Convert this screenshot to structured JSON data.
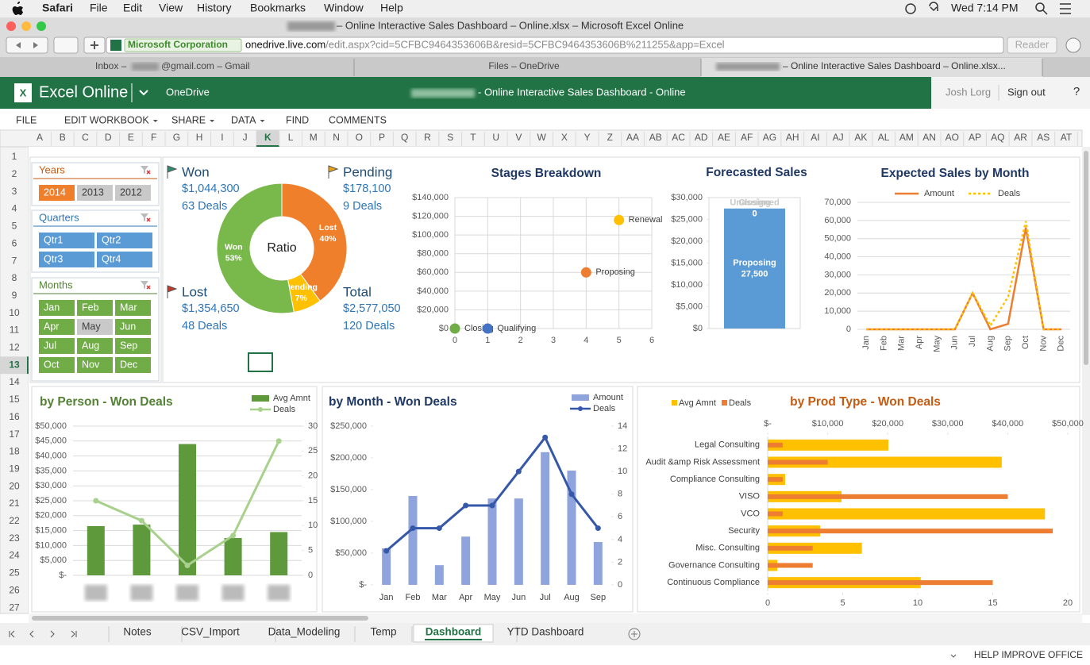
{
  "menubar": {
    "app": "Safari",
    "items": [
      "File",
      "Edit",
      "View",
      "History",
      "Bookmarks",
      "Window",
      "Help"
    ],
    "clock": "Wed 7:14 PM"
  },
  "browser": {
    "window_title": "– Online Interactive Sales Dashboard – Online.xlsx – Microsoft Excel Online",
    "site_identity": "Microsoft Corporation",
    "url_host": "onedrive.live.com",
    "url_path": "/edit.aspx?cid=5CFBC9464353606B&resid=5CFBC9464353606B%211255&app=Excel",
    "reader": "Reader",
    "tabs": [
      [
        "Inbox –",
        "@gmail.com – Gmail"
      ],
      [
        "Files – OneDrive"
      ],
      [
        "– Online Interactive Sales Dashboard – Online.xlsx..."
      ]
    ]
  },
  "excel": {
    "app": "Excel Online",
    "location": "OneDrive",
    "doc_title": "- Online Interactive Sales Dashboard - Online",
    "user": "Josh Lorg",
    "sign_out": "Sign out",
    "help": "?",
    "ribbon": [
      "FILE",
      "EDIT WORKBOOK",
      "SHARE",
      "DATA",
      "FIND",
      "COMMENTS"
    ]
  },
  "sheet": {
    "columns": [
      "A",
      "B",
      "C",
      "D",
      "E",
      "F",
      "G",
      "H",
      "I",
      "J",
      "K",
      "L",
      "M",
      "N",
      "O",
      "P",
      "Q",
      "R",
      "S",
      "T",
      "U",
      "V",
      "W",
      "X",
      "Y",
      "Z",
      "AA",
      "AB",
      "AC",
      "AD",
      "AE",
      "AF",
      "AG",
      "AH",
      "AI",
      "AJ",
      "AK",
      "AL",
      "AM",
      "AN",
      "AO",
      "AP",
      "AQ",
      "AR",
      "AS",
      "AT"
    ],
    "rows": [
      1,
      2,
      3,
      4,
      5,
      6,
      7,
      8,
      9,
      10,
      11,
      12,
      13,
      14,
      15,
      16,
      17,
      18,
      19,
      20,
      21,
      22,
      23,
      24,
      25,
      26,
      27
    ],
    "active_column": "K",
    "active_row": 13,
    "tabs": [
      "Notes",
      "CSV_Import",
      "Data_Modeling",
      "Temp",
      "Dashboard",
      "YTD Dashboard"
    ],
    "active_tab": "Dashboard",
    "status": "HELP IMPROVE OFFICE"
  },
  "slicers": [
    {
      "title": "Years",
      "color": "#c55a11",
      "button_color": "#f07f2b",
      "items": [
        {
          "label": "2014",
          "selected": true
        },
        {
          "label": "2013",
          "selected": false
        },
        {
          "label": "2012",
          "selected": false
        }
      ]
    },
    {
      "title": "Quarters",
      "color": "#2e75b6",
      "button_color": "#5b9bd5",
      "items": [
        {
          "label": "Qtr1",
          "selected": true
        },
        {
          "label": "Qtr2",
          "selected": true
        },
        {
          "label": "Qtr3",
          "selected": true
        },
        {
          "label": "Qtr4",
          "selected": true
        }
      ]
    },
    {
      "title": "Months",
      "color": "#548235",
      "button_color": "#70ad47",
      "items": [
        {
          "label": "Jan",
          "selected": true
        },
        {
          "label": "Feb",
          "selected": true
        },
        {
          "label": "Mar",
          "selected": true
        },
        {
          "label": "Apr",
          "selected": true
        },
        {
          "label": "May",
          "selected": false
        },
        {
          "label": "Jun",
          "selected": true
        },
        {
          "label": "Jul",
          "selected": true
        },
        {
          "label": "Aug",
          "selected": true
        },
        {
          "label": "Sep",
          "selected": true
        },
        {
          "label": "Oct",
          "selected": true
        },
        {
          "label": "Nov",
          "selected": true
        },
        {
          "label": "Dec",
          "selected": true
        }
      ]
    }
  ],
  "kpis": [
    {
      "label": "Won",
      "amount": "$1,044,300",
      "deals": "63 Deals",
      "flag": "#2e8b6e"
    },
    {
      "label": "Pending",
      "amount": "$178,100",
      "deals": "9 Deals",
      "flag": "#e8a317"
    },
    {
      "label": "Lost",
      "amount": "$1,354,650",
      "deals": "48 Deals",
      "flag": "#c0392b"
    },
    {
      "label": "Total",
      "amount": "$2,577,050",
      "deals": "120 Deals"
    }
  ],
  "chart_data": [
    {
      "type": "pie",
      "center_label": "Ratio",
      "categories": [
        "Lost",
        "Pending",
        "Won"
      ],
      "values": [
        40,
        7,
        53
      ],
      "value_labels": [
        "40%",
        "7%",
        "53%"
      ],
      "colors": [
        "#f07f2b",
        "#ffc000",
        "#79b94b"
      ]
    },
    {
      "type": "scatter",
      "title": "Stages Breakdown",
      "title_color": "#1f3864",
      "grid": true,
      "xlim": [
        0,
        6
      ],
      "xticks": [
        0,
        1,
        2,
        3,
        4,
        5,
        6
      ],
      "ylim": [
        0,
        140000
      ],
      "yticks": [
        {
          "value": 0,
          "label": "$0"
        },
        {
          "value": 20000,
          "label": "$20,000"
        },
        {
          "value": 40000,
          "label": "$40,000"
        },
        {
          "value": 60000,
          "label": "$60,000"
        },
        {
          "value": 80000,
          "label": "$80,000"
        },
        {
          "value": 100000,
          "label": "$100,000"
        },
        {
          "value": 120000,
          "label": "$120,000"
        },
        {
          "value": 140000,
          "label": "$140,000"
        }
      ],
      "series": [
        {
          "name": "Closing",
          "color": "#70ad47",
          "x": [
            0
          ],
          "values": [
            0
          ]
        },
        {
          "name": "Qualifying",
          "color": "#4472c4",
          "x": [
            1
          ],
          "values": [
            0
          ]
        },
        {
          "name": "Proposing",
          "color": "#ed7d31",
          "x": [
            4
          ],
          "values": [
            60000
          ]
        },
        {
          "name": "Renewal",
          "color": "#ffc000",
          "x": [
            5
          ],
          "values": [
            116000
          ]
        }
      ]
    },
    {
      "type": "stacked_bar",
      "title": "Forecasted Sales",
      "title_color": "#1f3864",
      "grid": false,
      "ylim": [
        0,
        30000
      ],
      "yticks": [
        {
          "value": 0,
          "label": "$0"
        },
        {
          "value": 5000,
          "label": "$5,000"
        },
        {
          "value": 10000,
          "label": "$10,000"
        },
        {
          "value": 15000,
          "label": "$15,000"
        },
        {
          "value": 20000,
          "label": "$20,000"
        },
        {
          "value": 25000,
          "label": "$25,000"
        },
        {
          "value": 30000,
          "label": "$30,000"
        }
      ],
      "series": [
        {
          "name": "Proposing",
          "color": "#5b9bd5",
          "values": [
            27500
          ],
          "value_labels": [
            "27,500"
          ]
        },
        {
          "name": "Closing",
          "color": "#a5a5a5",
          "values": [
            0
          ],
          "value_labels": [
            "0"
          ]
        },
        {
          "name": "Unassigned",
          "color": "#ffc000",
          "values": [
            0
          ],
          "value_labels": [
            "0"
          ]
        }
      ]
    },
    {
      "type": "line",
      "title": "Expected Sales by Month",
      "title_color": "#1f3864",
      "grid": true,
      "categories": [
        "Jan",
        "Feb",
        "Mar",
        "Apr",
        "May",
        "Jun",
        "Jul",
        "Aug",
        "Sep",
        "Oct",
        "Nov",
        "Dec"
      ],
      "ylim": [
        0,
        70000
      ],
      "yticks": [
        0,
        {
          "value": 10000,
          "label": "10,000"
        },
        {
          "value": 20000,
          "label": "20,000"
        },
        {
          "value": 30000,
          "label": "30,000"
        },
        {
          "value": 40000,
          "label": "40,000"
        },
        {
          "value": 50000,
          "label": "50,000"
        },
        {
          "value": 60000,
          "label": "60,000"
        },
        {
          "value": 70000,
          "label": "70,000"
        }
      ],
      "series": [
        {
          "name": "Amount",
          "color": "#ed7d31",
          "dash": false,
          "values": [
            0,
            0,
            0,
            0,
            0,
            0,
            20000,
            0,
            3000,
            56000,
            0,
            0
          ]
        },
        {
          "name": "Deals",
          "color": "#ffc000",
          "dash": true,
          "values": [
            0,
            0,
            0,
            0,
            0,
            0,
            20000,
            2000,
            18000,
            59500,
            0,
            0
          ]
        }
      ]
    },
    {
      "type": "bar_line",
      "title": "by Person - Won Deals",
      "title_color": "#548235",
      "grid": true,
      "categories": [
        null,
        null,
        null,
        null,
        null
      ],
      "ylim": [
        0,
        50000
      ],
      "yticks": [
        {
          "value": 0,
          "label": "$-"
        },
        {
          "value": 5000,
          "label": "$5,000"
        },
        {
          "value": 10000,
          "label": "$10,000"
        },
        {
          "value": 15000,
          "label": "$15,000"
        },
        {
          "value": 20000,
          "label": "$20,000"
        },
        {
          "value": 25000,
          "label": "$25,000"
        },
        {
          "value": 30000,
          "label": "$30,000"
        },
        {
          "value": 35000,
          "label": "$35,000"
        },
        {
          "value": 40000,
          "label": "$40,000"
        },
        {
          "value": 45000,
          "label": "$45,000"
        },
        {
          "value": 50000,
          "label": "$50,000"
        }
      ],
      "y2lim": [
        0,
        30
      ],
      "y2ticks": [
        0,
        5,
        10,
        15,
        20,
        25,
        30
      ],
      "series": [
        {
          "name": "Avg Amnt",
          "color": "#5e9a3b",
          "values": [
            16500,
            17000,
            44000,
            12500,
            14500
          ]
        },
        {
          "name": "Deals",
          "color": "#a9d18e",
          "axis": "y2",
          "values": [
            15,
            11,
            2,
            8,
            27
          ]
        }
      ]
    },
    {
      "type": "bar_line",
      "title": "by Month - Won Deals",
      "title_color": "#1f3864",
      "grid": false,
      "categories": [
        "Jan",
        "Feb",
        "Mar",
        "Apr",
        "May",
        "Jun",
        "Jul",
        "Aug",
        "Sep"
      ],
      "ylim": [
        0,
        250000
      ],
      "yticks": [
        {
          "value": 0,
          "label": "$-"
        },
        {
          "value": 50000,
          "label": "$50,000"
        },
        {
          "value": 100000,
          "label": "$100,000"
        },
        {
          "value": 150000,
          "label": "$150,000"
        },
        {
          "value": 200000,
          "label": "$200,000"
        },
        {
          "value": 250000,
          "label": "$250,000"
        }
      ],
      "y2lim": [
        0,
        14
      ],
      "y2ticks": [
        0,
        2,
        4,
        6,
        8,
        10,
        12,
        14
      ],
      "series": [
        {
          "name": "Amount",
          "color": "#8fa3dc",
          "values": [
            57500,
            140000,
            31000,
            76000,
            136000,
            136000,
            209000,
            180000,
            67500
          ]
        },
        {
          "name": "Deals",
          "color": "#3558a8",
          "axis": "y2",
          "values": [
            3,
            5,
            5,
            7,
            7,
            10,
            13,
            8,
            5
          ]
        }
      ]
    },
    {
      "type": "hbar",
      "title": "by Prod Type - Won Deals",
      "title_color": "#c55a11",
      "categories": [
        "Legal Consulting",
        "Audit &amp Risk Assessment",
        "Compliance Consulting",
        "VISO",
        "VCO",
        "Security",
        "Misc. Consulting",
        "Governance Consulting",
        "Continuous Compliance"
      ],
      "xlim": [
        0,
        50000
      ],
      "xticks": [
        {
          "value": 0,
          "label": "$-"
        },
        {
          "value": 10000,
          "label": "$10,000"
        },
        {
          "value": 20000,
          "label": "$20,000"
        },
        {
          "value": 30000,
          "label": "$30,000"
        },
        {
          "value": 40000,
          "label": "$40,000"
        },
        {
          "value": 50000,
          "label": "$50,000"
        }
      ],
      "x2lim": [
        0,
        20
      ],
      "x2ticks": [
        0,
        5,
        10,
        15,
        20
      ],
      "series": [
        {
          "name": "Avg Amnt",
          "color": "#ffc000",
          "values": [
            20100,
            39000,
            2900,
            12300,
            46200,
            8750,
            15700,
            1600,
            25500
          ]
        },
        {
          "name": "Deals",
          "color": "#ed7d31",
          "axis": "x2",
          "values": [
            1,
            4,
            1,
            16,
            1,
            19,
            3,
            3,
            15
          ]
        }
      ]
    }
  ]
}
